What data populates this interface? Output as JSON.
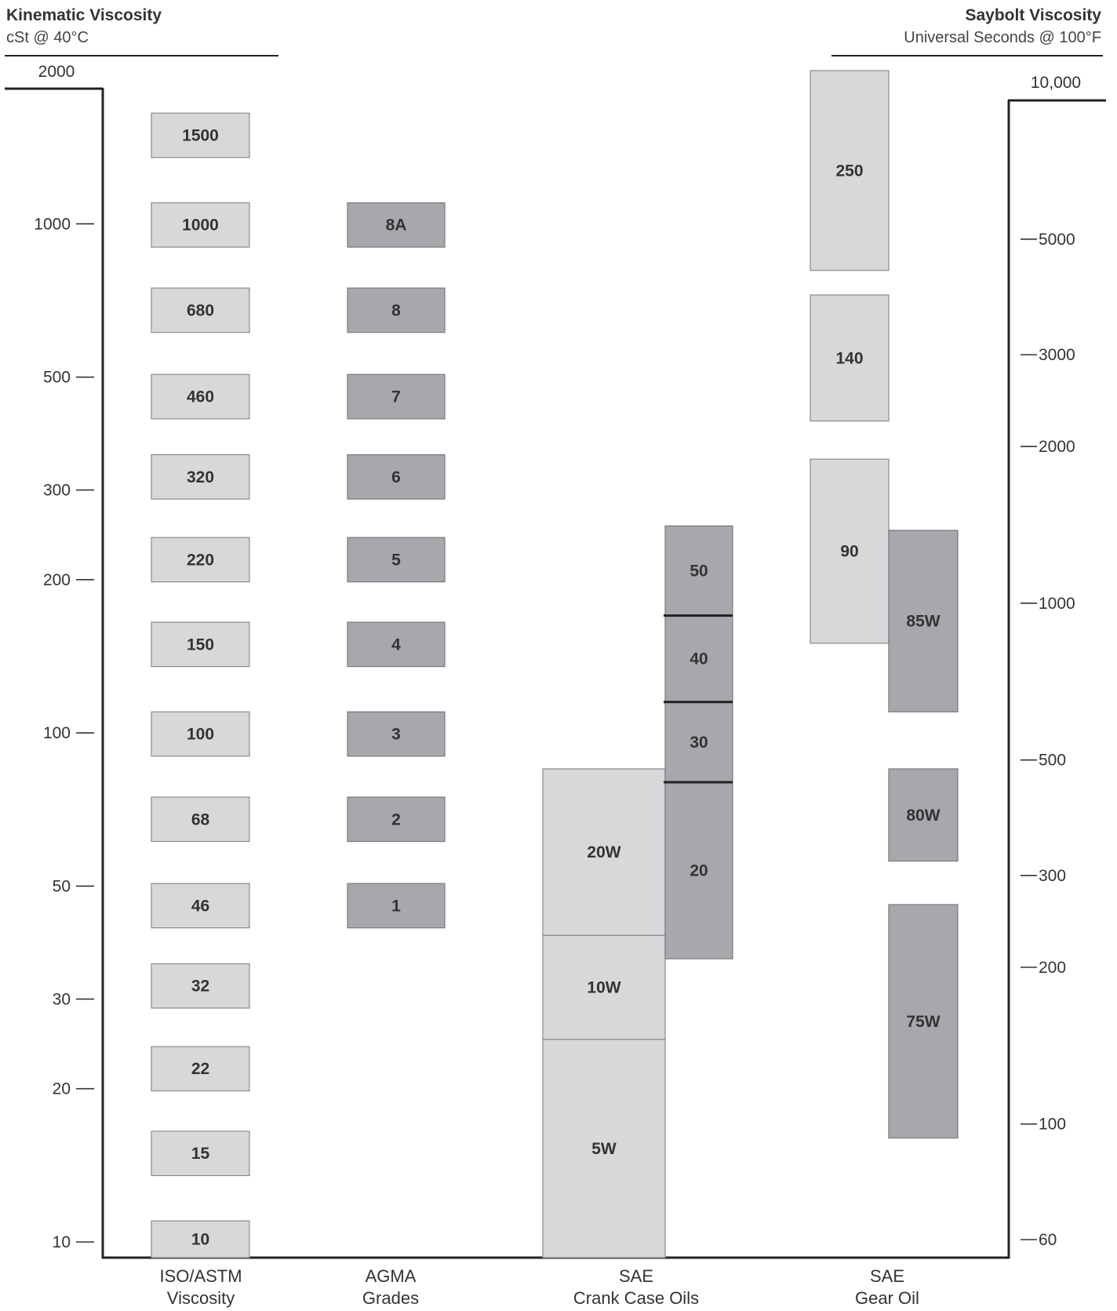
{
  "chart_data": {
    "type": "range-bar",
    "left_axis": {
      "title": "Kinematic Viscosity",
      "subtitle": "cSt @ 40°C",
      "scale": "log",
      "range": [
        10,
        2000
      ],
      "ticks": [
        2000,
        1000,
        500,
        300,
        200,
        100,
        50,
        30,
        20,
        10
      ],
      "tick_labels": [
        "2000",
        "1000",
        "500",
        "300",
        "200",
        "100",
        "50",
        "30",
        "20",
        "10"
      ]
    },
    "right_axis": {
      "title": "Saybolt Viscosity",
      "subtitle": "Universal Seconds @ 100°F",
      "scale": "log",
      "range": [
        60,
        10000
      ],
      "ticks": [
        10000,
        5000,
        3000,
        2000,
        1000,
        500,
        300,
        200,
        100,
        60
      ],
      "tick_labels": [
        "10,000",
        "5000",
        "3000",
        "2000",
        "1000",
        "500",
        "300",
        "200",
        "100",
        "60"
      ]
    },
    "categories": [
      {
        "key": "iso",
        "label_line1": "ISO/ASTM",
        "label_line2": "Viscosity"
      },
      {
        "key": "agma",
        "label_line1": "AGMA",
        "label_line2": "Grades"
      },
      {
        "key": "sae_crank",
        "label_line1": "SAE",
        "label_line2": "Crank Case Oils"
      },
      {
        "key": "sae_gear",
        "label_line1": "SAE",
        "label_line2": "Gear Oil"
      }
    ],
    "series": [
      {
        "group": "iso",
        "shade": "light",
        "grades": [
          {
            "label": "1500",
            "low": 1350,
            "high": 1650
          },
          {
            "label": "1000",
            "low": 900,
            "high": 1100
          },
          {
            "label": "680",
            "low": 612,
            "high": 748
          },
          {
            "label": "460",
            "low": 414,
            "high": 506
          },
          {
            "label": "320",
            "low": 288,
            "high": 352
          },
          {
            "label": "220",
            "low": 198,
            "high": 242
          },
          {
            "label": "150",
            "low": 135,
            "high": 165
          },
          {
            "label": "100",
            "low": 90,
            "high": 110
          },
          {
            "label": "68",
            "low": 61.2,
            "high": 74.8
          },
          {
            "label": "46",
            "low": 41.4,
            "high": 50.6
          },
          {
            "label": "32",
            "low": 28.8,
            "high": 35.2
          },
          {
            "label": "22",
            "low": 19.8,
            "high": 24.2
          },
          {
            "label": "15",
            "low": 13.5,
            "high": 16.5
          },
          {
            "label": "10",
            "low": 9,
            "high": 11
          }
        ]
      },
      {
        "group": "agma",
        "shade": "dark",
        "grades": [
          {
            "label": "8A",
            "low": 900,
            "high": 1100
          },
          {
            "label": "8",
            "low": 612,
            "high": 748
          },
          {
            "label": "7",
            "low": 414,
            "high": 506
          },
          {
            "label": "6",
            "low": 288,
            "high": 352
          },
          {
            "label": "5",
            "low": 198,
            "high": 242
          },
          {
            "label": "4",
            "low": 135,
            "high": 165
          },
          {
            "label": "3",
            "low": 90,
            "high": 110
          },
          {
            "label": "2",
            "low": 61.2,
            "high": 74.8
          },
          {
            "label": "1",
            "low": 41.4,
            "high": 50.6
          }
        ]
      },
      {
        "group": "sae_crank",
        "sub": "winter",
        "shade": "light",
        "grades": [
          {
            "label": "20W",
            "low": 40,
            "high": 85
          },
          {
            "label": "10W",
            "low": 25,
            "high": 40
          },
          {
            "label": "5W",
            "low": 9,
            "high": 25
          }
        ]
      },
      {
        "group": "sae_crank",
        "sub": "summer",
        "shade": "dark",
        "grades": [
          {
            "label": "50",
            "low": 170,
            "high": 255
          },
          {
            "label": "40",
            "low": 115,
            "high": 170
          },
          {
            "label": "30",
            "low": 80,
            "high": 115
          },
          {
            "label": "20",
            "low": 36,
            "high": 80
          }
        ]
      },
      {
        "group": "sae_gear",
        "sub": "single",
        "shade": "light",
        "grades": [
          {
            "label": "250",
            "low": 810,
            "high": 2000
          },
          {
            "label": "140",
            "low": 410,
            "high": 725
          },
          {
            "label": "90",
            "low": 150,
            "high": 345
          }
        ]
      },
      {
        "group": "sae_gear",
        "sub": "multi",
        "shade": "dark",
        "grades": [
          {
            "label": "85W",
            "low": 110,
            "high": 250
          },
          {
            "label": "80W",
            "low": 56,
            "high": 85
          },
          {
            "label": "75W",
            "low": 16,
            "high": 46
          }
        ]
      }
    ]
  }
}
